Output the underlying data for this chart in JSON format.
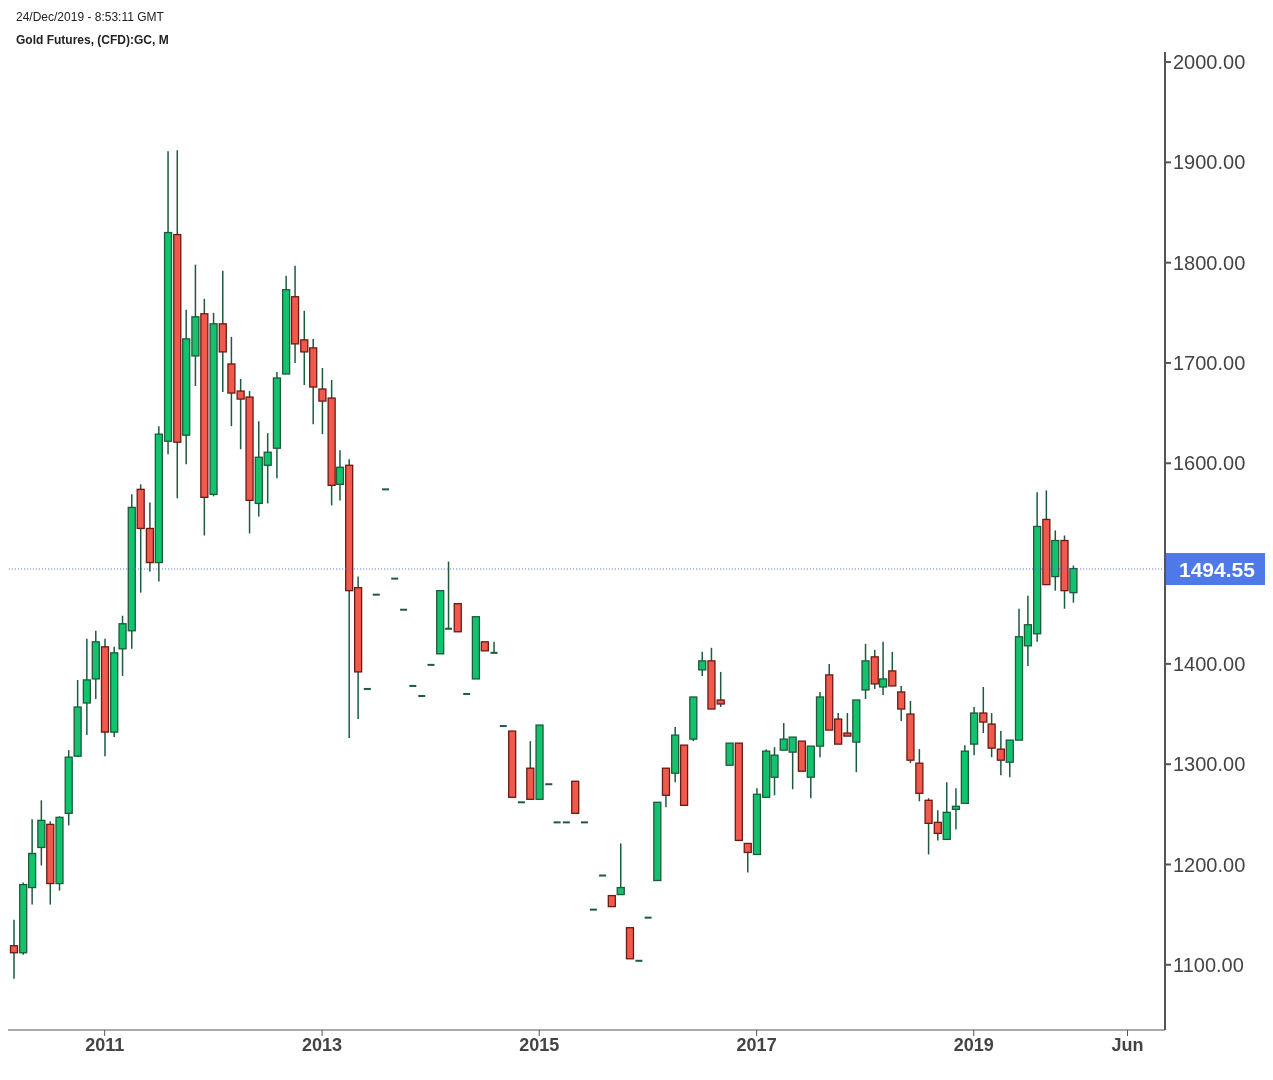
{
  "chart_data": {
    "type": "candlestick",
    "title": "Gold Futures, (CFD):GC, M",
    "annotations": [
      "24/Dec/2019 - 8:53:11 GMT"
    ],
    "x": [
      "2010-03",
      "2010-04",
      "2010-05",
      "2010-06",
      "2010-07",
      "2010-08",
      "2010-09",
      "2010-10",
      "2010-11",
      "2010-12",
      "2011-01",
      "2011-02",
      "2011-03",
      "2011-04",
      "2011-05",
      "2011-06",
      "2011-07",
      "2011-08",
      "2011-09",
      "2011-10",
      "2011-11",
      "2011-12",
      "2012-01",
      "2012-02",
      "2012-03",
      "2012-04",
      "2012-05",
      "2012-06",
      "2012-07",
      "2012-08",
      "2012-09",
      "2012-10",
      "2012-11",
      "2012-12",
      "2013-01",
      "2013-02",
      "2013-03",
      "2013-04",
      "2013-05",
      "2013-06",
      "2013-07",
      "2013-08",
      "2013-09",
      "2013-10",
      "2013-11",
      "2013-12",
      "2014-01",
      "2014-02",
      "2014-03",
      "2014-04",
      "2014-05",
      "2014-06",
      "2014-07",
      "2014-08",
      "2014-09",
      "2014-10",
      "2014-11",
      "2014-12",
      "2015-01",
      "2015-02",
      "2015-03",
      "2015-04",
      "2015-05",
      "2015-06",
      "2015-07",
      "2015-08",
      "2015-09",
      "2015-10",
      "2015-11",
      "2015-12",
      "2016-01",
      "2016-02",
      "2016-03",
      "2016-04",
      "2016-05",
      "2016-06",
      "2016-07",
      "2016-08",
      "2016-09",
      "2016-10",
      "2016-11",
      "2016-12",
      "2017-01",
      "2017-02",
      "2017-03",
      "2017-04",
      "2017-05",
      "2017-06",
      "2017-07",
      "2017-08",
      "2017-09",
      "2017-10",
      "2017-11",
      "2017-12",
      "2018-01",
      "2018-02",
      "2018-03",
      "2018-04",
      "2018-05",
      "2018-06",
      "2018-07",
      "2018-08",
      "2018-09",
      "2018-10",
      "2018-11",
      "2018-12",
      "2019-01",
      "2019-02",
      "2019-03",
      "2019-04",
      "2019-05",
      "2019-06",
      "2019-07",
      "2019-08",
      "2019-09",
      "2019-10",
      "2019-11",
      "2019-12"
    ],
    "ohlc": [
      [
        1119,
        1145,
        1086,
        1112
      ],
      [
        1112,
        1182,
        1110,
        1180
      ],
      [
        1177,
        1245,
        1160,
        1211
      ],
      [
        1217,
        1264,
        1199,
        1244
      ],
      [
        1240,
        1243,
        1160,
        1181
      ],
      [
        1181,
        1248,
        1174,
        1247
      ],
      [
        1251,
        1314,
        1239,
        1307
      ],
      [
        1308,
        1384,
        1307,
        1357
      ],
      [
        1361,
        1425,
        1329,
        1384
      ],
      [
        1385,
        1433,
        1365,
        1422
      ],
      [
        1417,
        1425,
        1308,
        1332
      ],
      [
        1332,
        1417,
        1327,
        1411
      ],
      [
        1415,
        1448,
        1388,
        1440
      ],
      [
        1433,
        1569,
        1415,
        1556
      ],
      [
        1574,
        1579,
        1471,
        1535
      ],
      [
        1535,
        1561,
        1492,
        1501
      ],
      [
        1501,
        1637,
        1482,
        1629
      ],
      [
        1622,
        1911,
        1609,
        1830
      ],
      [
        1828,
        1912,
        1565,
        1621
      ],
      [
        1628,
        1753,
        1599,
        1724
      ],
      [
        1707,
        1798,
        1677,
        1746
      ],
      [
        1749,
        1764,
        1528,
        1566
      ],
      [
        1569,
        1750,
        1567,
        1739
      ],
      [
        1739,
        1792,
        1671,
        1711
      ],
      [
        1699,
        1726,
        1637,
        1670
      ],
      [
        1672,
        1684,
        1614,
        1664
      ],
      [
        1666,
        1672,
        1530,
        1563
      ],
      [
        1560,
        1642,
        1547,
        1606
      ],
      [
        1598,
        1630,
        1560,
        1611
      ],
      [
        1615,
        1691,
        1585,
        1685
      ],
      [
        1689,
        1787,
        1689,
        1773
      ],
      [
        1766,
        1797,
        1700,
        1719
      ],
      [
        1723,
        1752,
        1678,
        1711
      ],
      [
        1715,
        1724,
        1639,
        1676
      ],
      [
        1674,
        1695,
        1629,
        1662
      ],
      [
        1665,
        1683,
        1558,
        1578
      ],
      [
        1579,
        1613,
        1563,
        1596
      ],
      [
        1598,
        1604,
        1326,
        1473
      ],
      [
        1476,
        1487,
        1345,
        1392
      ],
      [
        1375,
        1375,
        1375,
        1375
      ],
      [
        1469,
        1469,
        1469,
        1469
      ],
      [
        1574,
        1574,
        1574,
        1574
      ],
      [
        1485,
        1485,
        1485,
        1485
      ],
      [
        1454,
        1454,
        1454,
        1454
      ],
      [
        1378,
        1378,
        1378,
        1378
      ],
      [
        1368,
        1368,
        1368,
        1368
      ],
      [
        1399,
        1399,
        1399,
        1399
      ],
      [
        1410,
        1473,
        1410,
        1473
      ],
      [
        1435,
        1502,
        1435,
        1435
      ],
      [
        1460,
        1460,
        1432,
        1432
      ],
      [
        1370,
        1370,
        1370,
        1370
      ],
      [
        1385,
        1447,
        1385,
        1447
      ],
      [
        1422,
        1422,
        1413,
        1413
      ],
      [
        1411,
        1422,
        1411,
        1411
      ],
      [
        1338,
        1338,
        1338,
        1338
      ],
      [
        1333,
        1333,
        1267,
        1267
      ],
      [
        1262,
        1262,
        1262,
        1262
      ],
      [
        1296,
        1323,
        1265,
        1265
      ],
      [
        1265,
        1339,
        1265,
        1339
      ],
      [
        1280,
        1280,
        1280,
        1280
      ],
      [
        1242,
        1242,
        1242,
        1242
      ],
      [
        1242,
        1242,
        1242,
        1242
      ],
      [
        1283,
        1283,
        1251,
        1251
      ],
      [
        1242,
        1242,
        1242,
        1242
      ],
      [
        1155,
        1155,
        1155,
        1155
      ],
      [
        1189,
        1189,
        1189,
        1189
      ],
      [
        1169,
        1169,
        1158,
        1158
      ],
      [
        1170,
        1221,
        1170,
        1177
      ],
      [
        1137,
        1137,
        1106,
        1106
      ],
      [
        1104,
        1104,
        1104,
        1104
      ],
      [
        1147,
        1147,
        1147,
        1147
      ],
      [
        1184,
        1262,
        1184,
        1262
      ],
      [
        1296,
        1296,
        1257,
        1269
      ],
      [
        1291,
        1337,
        1282,
        1329
      ],
      [
        1319,
        1319,
        1259,
        1259
      ],
      [
        1325,
        1367,
        1323,
        1367
      ],
      [
        1394,
        1412,
        1388,
        1403
      ],
      [
        1403,
        1416,
        1355,
        1355
      ],
      [
        1364,
        1392,
        1357,
        1360
      ],
      [
        1299,
        1321,
        1299,
        1321
      ],
      [
        1321,
        1321,
        1224,
        1224
      ],
      [
        1221,
        1221,
        1192,
        1212
      ],
      [
        1210,
        1276,
        1210,
        1270
      ],
      [
        1267,
        1315,
        1267,
        1313
      ],
      [
        1287,
        1317,
        1269,
        1309
      ],
      [
        1314,
        1341,
        1314,
        1325
      ],
      [
        1312,
        1327,
        1275,
        1327
      ],
      [
        1323,
        1323,
        1293,
        1293
      ],
      [
        1287,
        1318,
        1266,
        1318
      ],
      [
        1318,
        1372,
        1307,
        1367
      ],
      [
        1389,
        1400,
        1334,
        1334
      ],
      [
        1345,
        1351,
        1320,
        1320
      ],
      [
        1331,
        1351,
        1328,
        1328
      ],
      [
        1322,
        1364,
        1292,
        1364
      ],
      [
        1374,
        1420,
        1365,
        1403
      ],
      [
        1407,
        1414,
        1375,
        1380
      ],
      [
        1377,
        1422,
        1369,
        1385
      ],
      [
        1393,
        1412,
        1378,
        1378
      ],
      [
        1372,
        1378,
        1343,
        1355
      ],
      [
        1350,
        1363,
        1301,
        1304
      ],
      [
        1301,
        1315,
        1263,
        1271
      ],
      [
        1264,
        1266,
        1210,
        1241
      ],
      [
        1242,
        1254,
        1224,
        1231
      ],
      [
        1225,
        1282,
        1225,
        1252
      ],
      [
        1255,
        1276,
        1235,
        1258
      ],
      [
        1261,
        1319,
        1261,
        1313
      ],
      [
        1320,
        1357,
        1309,
        1351
      ],
      [
        1351,
        1377,
        1331,
        1342
      ],
      [
        1340,
        1351,
        1307,
        1316
      ],
      [
        1315,
        1333,
        1289,
        1304
      ],
      [
        1302,
        1324,
        1287,
        1324
      ],
      [
        1324,
        1455,
        1324,
        1427
      ],
      [
        1418,
        1468,
        1398,
        1439
      ],
      [
        1430,
        1571,
        1422,
        1537
      ],
      [
        1544,
        1573,
        1479,
        1479
      ],
      [
        1487,
        1533,
        1473,
        1523
      ],
      [
        1523,
        1528,
        1455,
        1473
      ],
      [
        1471,
        1498,
        1461,
        1495
      ]
    ],
    "xlim": [
      "2010-02-10",
      "2020-10-05"
    ],
    "xticks": [
      {
        "value": "2011",
        "label": "2011"
      },
      {
        "value": "2013",
        "label": "2013"
      },
      {
        "value": "2015",
        "label": "2015"
      },
      {
        "value": "2017",
        "label": "2017"
      },
      {
        "value": "2019",
        "label": "2019"
      },
      {
        "value": "2020-06",
        "label": "Jun"
      }
    ],
    "ylim": [
      1035,
      2010
    ],
    "yticks": [
      {
        "value": 1100,
        "label": "1100.00"
      },
      {
        "value": 1200,
        "label": "1200.00"
      },
      {
        "value": 1300,
        "label": "1300.00"
      },
      {
        "value": 1400,
        "label": "1400.00"
      },
      {
        "value": 1600,
        "label": "1600.00"
      },
      {
        "value": 1700,
        "label": "1700.00"
      },
      {
        "value": 1800,
        "label": "1800.00"
      },
      {
        "value": 1900,
        "label": "1900.00"
      },
      {
        "value": 2000,
        "label": "2000.00"
      }
    ],
    "ref_lines": [
      {
        "axis": "y",
        "value": 1494.55,
        "label": "1494.55",
        "color": "#4f79e6",
        "line_style": "dotted"
      }
    ]
  }
}
